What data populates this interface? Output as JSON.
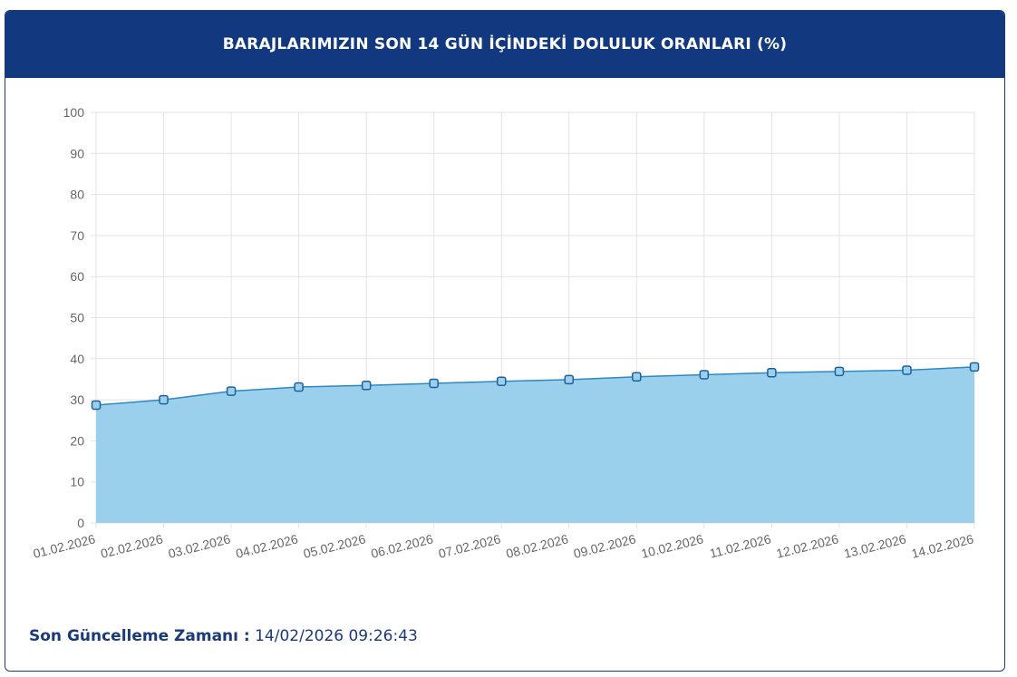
{
  "header": {
    "title": "BARAJLARIMIZIN SON 14 GÜN İÇİNDEKİ DOLULUK ORANLARI (%)"
  },
  "footer": {
    "label": "Son Güncelleme Zamanı :",
    "value": "14/02/2026 09:26:43"
  },
  "colors": {
    "header_bg": "#12387f",
    "area_fill": "#9ad0ec",
    "line": "#2e88c4",
    "point_fill": "#9ad0ec",
    "point_stroke": "#1f5f9c",
    "grid": "#e3e3e3",
    "tick_text": "#666666"
  },
  "chart_data": {
    "type": "area",
    "categories": [
      "01.02.2026",
      "02.02.2026",
      "03.02.2026",
      "04.02.2026",
      "05.02.2026",
      "06.02.2026",
      "07.02.2026",
      "08.02.2026",
      "09.02.2026",
      "10.02.2026",
      "11.02.2026",
      "12.02.2026",
      "13.02.2026",
      "14.02.2026"
    ],
    "series": [
      {
        "values": [
          28.7,
          30.0,
          32.1,
          33.1,
          33.5,
          34.0,
          34.5,
          34.9,
          35.6,
          36.1,
          36.6,
          36.9,
          37.2,
          38.0
        ]
      }
    ],
    "ylim": [
      0,
      100
    ],
    "yticks": [
      0,
      10,
      20,
      30,
      40,
      50,
      60,
      70,
      80,
      90,
      100
    ],
    "grid": true,
    "legend": "none",
    "xlabel": "",
    "ylabel": ""
  }
}
